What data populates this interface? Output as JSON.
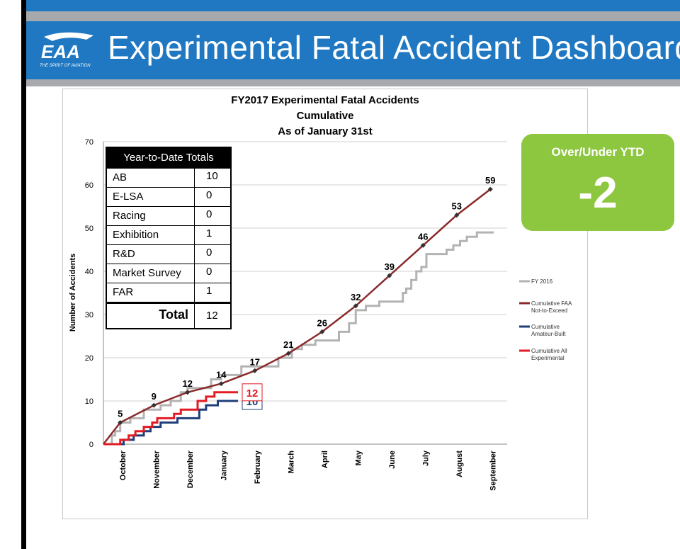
{
  "header": {
    "logo_text": "EAA",
    "logo_tagline": "THE SPIRIT OF AVIATION",
    "title": "Experimental Fatal Accident Dashboard"
  },
  "colors": {
    "banner_blue": "#1f78c1",
    "stripe_gray": "#a7a9ac",
    "fy2016": "#b3b3b3",
    "faa_not_to_exceed": "#8b2a2a",
    "amateur_built": "#1f3f7a",
    "all_experimental": "#e31b23",
    "over_under_green": "#8dc63f"
  },
  "ytd_table": {
    "header": "Year-to-Date Totals",
    "rows": [
      {
        "label": "AB",
        "value": "10"
      },
      {
        "label": "E-LSA",
        "value": "0"
      },
      {
        "label": "Racing",
        "value": "0"
      },
      {
        "label": "Exhibition",
        "value": "1"
      },
      {
        "label": "R&D",
        "value": "0"
      },
      {
        "label": "Market Survey",
        "value": "0"
      },
      {
        "label": "FAR",
        "value": "1"
      }
    ],
    "total_label": "Total",
    "total_value": "12"
  },
  "over_under": {
    "title": "Over/Under YTD",
    "value": "-2"
  },
  "chart_data": {
    "type": "line",
    "title": [
      "FY2017 Experimental Fatal Accidents",
      "Cumulative",
      "As of January 31st"
    ],
    "ylabel": "Number of Accidents",
    "ylim": [
      0,
      70
    ],
    "yticks": [
      0,
      10,
      20,
      30,
      40,
      50,
      60,
      70
    ],
    "months": [
      "October",
      "November",
      "December",
      "January",
      "February",
      "March",
      "April",
      "May",
      "June",
      "July",
      "August",
      "September"
    ],
    "x_domain": [
      0,
      12
    ],
    "legend_position": "right",
    "grid": true,
    "series": [
      {
        "name": "FY 2016",
        "color": "#b3b3b3",
        "step": true,
        "points": [
          [
            0,
            0
          ],
          [
            0.25,
            2
          ],
          [
            0.35,
            3
          ],
          [
            0.5,
            5
          ],
          [
            0.8,
            6
          ],
          [
            1.2,
            8
          ],
          [
            1.7,
            9
          ],
          [
            2.0,
            10
          ],
          [
            2.3,
            12
          ],
          [
            2.5,
            13
          ],
          [
            3.2,
            15
          ],
          [
            3.5,
            16
          ],
          [
            4.1,
            18
          ],
          [
            4.6,
            18
          ],
          [
            5.2,
            20
          ],
          [
            5.6,
            22
          ],
          [
            5.9,
            23
          ],
          [
            6.3,
            24
          ],
          [
            6.6,
            24
          ],
          [
            7.0,
            26
          ],
          [
            7.3,
            28
          ],
          [
            7.5,
            31
          ],
          [
            7.8,
            32
          ],
          [
            8.2,
            33
          ],
          [
            8.6,
            33
          ],
          [
            8.9,
            35
          ],
          [
            9.0,
            36
          ],
          [
            9.15,
            38
          ],
          [
            9.3,
            40
          ],
          [
            9.45,
            41
          ],
          [
            9.6,
            44
          ],
          [
            10.2,
            45
          ],
          [
            10.4,
            46
          ],
          [
            10.6,
            47
          ],
          [
            10.8,
            48
          ],
          [
            11.1,
            49
          ],
          [
            11.6,
            49
          ]
        ]
      },
      {
        "name": "Cumulative FAA Not-to-Exceed",
        "color": "#8b2a2a",
        "step": false,
        "markers": true,
        "points": [
          [
            0,
            0
          ],
          [
            0.5,
            5
          ],
          [
            1.5,
            9
          ],
          [
            2.5,
            12
          ],
          [
            3.5,
            14
          ],
          [
            4.5,
            17
          ],
          [
            5.5,
            21
          ],
          [
            6.5,
            26
          ],
          [
            7.5,
            32
          ],
          [
            8.5,
            39
          ],
          [
            9.5,
            46
          ],
          [
            10.5,
            53
          ],
          [
            11.5,
            59
          ]
        ],
        "data_labels": [
          {
            "x": 0.5,
            "y": 5,
            "text": "5"
          },
          {
            "x": 1.5,
            "y": 9,
            "text": "9"
          },
          {
            "x": 2.5,
            "y": 12,
            "text": "12"
          },
          {
            "x": 3.5,
            "y": 14,
            "text": "14"
          },
          {
            "x": 4.5,
            "y": 17,
            "text": "17"
          },
          {
            "x": 5.5,
            "y": 21,
            "text": "21"
          },
          {
            "x": 6.5,
            "y": 26,
            "text": "26"
          },
          {
            "x": 7.5,
            "y": 32,
            "text": "32"
          },
          {
            "x": 8.5,
            "y": 39,
            "text": "39"
          },
          {
            "x": 9.5,
            "y": 46,
            "text": "46"
          },
          {
            "x": 10.5,
            "y": 53,
            "text": "53"
          },
          {
            "x": 11.5,
            "y": 59,
            "text": "59"
          }
        ]
      },
      {
        "name": "Cumulative Amateur-Built",
        "color": "#1f3f7a",
        "step": true,
        "points": [
          [
            0,
            0
          ],
          [
            0.6,
            1
          ],
          [
            0.9,
            2
          ],
          [
            1.2,
            3
          ],
          [
            1.4,
            4
          ],
          [
            1.7,
            5
          ],
          [
            2.2,
            6
          ],
          [
            2.85,
            8
          ],
          [
            3.05,
            9
          ],
          [
            3.4,
            10
          ],
          [
            4.0,
            10
          ]
        ],
        "end_label": "10"
      },
      {
        "name": "Cumulative All Experimental",
        "color": "#e31b23",
        "step": true,
        "points": [
          [
            0,
            0
          ],
          [
            0.5,
            1
          ],
          [
            0.75,
            2
          ],
          [
            0.95,
            3
          ],
          [
            1.2,
            4
          ],
          [
            1.45,
            5
          ],
          [
            1.6,
            6
          ],
          [
            2.1,
            7
          ],
          [
            2.3,
            8
          ],
          [
            2.8,
            10
          ],
          [
            3.05,
            11
          ],
          [
            3.3,
            12
          ],
          [
            4.0,
            12
          ]
        ],
        "end_label": "12"
      }
    ]
  }
}
